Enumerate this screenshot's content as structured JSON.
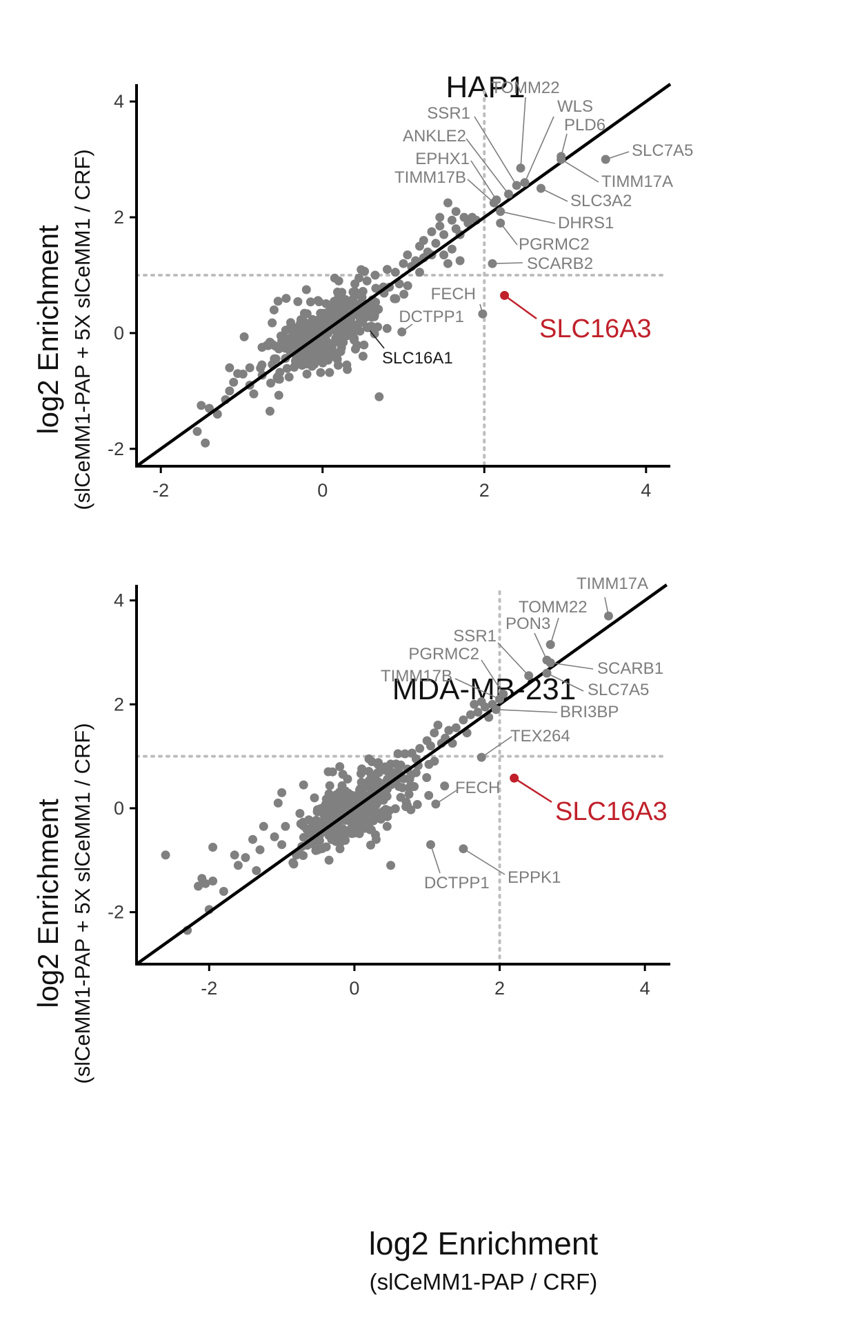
{
  "figure": {
    "x_label_main": "log2 Enrichment",
    "x_label_sub": "(slCeMM1-PAP / CRF)"
  },
  "colors": {
    "point": "#808080",
    "highlight": "#c0202a",
    "label": "#7d7d7d",
    "diagonal": "#000000",
    "threshold": "#bdbdbd"
  },
  "chart_data": [
    {
      "type": "scatter",
      "title": "HAP1",
      "xlabel": "log2 Enrichment",
      "xlabel_sub": "(slCeMM1-PAP / CRF)",
      "ylabel": "log2 Enrichment",
      "ylabel_sub": "(slCeMM1-PAP + 5X slCeMM1 / CRF)",
      "xlim": [
        -2.3,
        4.3
      ],
      "ylim": [
        -2.3,
        4.3
      ],
      "xticks": [
        "-2",
        "0",
        "2",
        "4"
      ],
      "yticks": [
        "-2",
        "0",
        "2",
        "4"
      ],
      "reference_line": "y = x",
      "thresholds": {
        "x": 2,
        "y": 1
      },
      "cloud": {
        "center": [
          0.05,
          0.05
        ],
        "n": 360,
        "sd_major": 0.45,
        "sd_minor": 0.22,
        "seed": 11
      },
      "extra_points": [
        [
          -1.45,
          -1.9
        ],
        [
          -1.55,
          -1.7
        ],
        [
          -1.5,
          -1.25
        ],
        [
          -1.4,
          -1.3
        ],
        [
          -1.3,
          -1.4
        ],
        [
          -1.2,
          -1.15
        ],
        [
          -1.15,
          -1.0
        ],
        [
          -1.1,
          -0.85
        ],
        [
          -1.15,
          -0.6
        ],
        [
          -1.05,
          -0.7
        ],
        [
          -0.9,
          -0.9
        ],
        [
          -0.85,
          -1.05
        ],
        [
          -0.9,
          -0.6
        ],
        [
          -0.65,
          -1.35
        ],
        [
          -0.75,
          -0.55
        ],
        [
          -0.55,
          0.55
        ],
        [
          -0.6,
          0.4
        ],
        [
          -0.45,
          0.6
        ],
        [
          -0.2,
          0.75
        ],
        [
          0.15,
          0.95
        ],
        [
          0.2,
          0.9
        ],
        [
          0.4,
          0.85
        ],
        [
          0.45,
          0.95
        ],
        [
          0.55,
          0.9
        ],
        [
          0.65,
          1.0
        ],
        [
          0.8,
          1.1
        ],
        [
          0.7,
          -1.1
        ],
        [
          0.5,
          -0.4
        ],
        [
          0.3,
          -0.55
        ],
        [
          0.9,
          1.05
        ],
        [
          1.0,
          1.2
        ],
        [
          1.05,
          1.35
        ],
        [
          1.1,
          1.15
        ],
        [
          1.15,
          1.25
        ],
        [
          1.2,
          1.5
        ],
        [
          1.25,
          1.6
        ],
        [
          1.3,
          1.4
        ],
        [
          1.35,
          1.75
        ],
        [
          1.4,
          1.55
        ],
        [
          1.45,
          1.85
        ],
        [
          1.5,
          1.7
        ],
        [
          1.55,
          1.2
        ],
        [
          1.6,
          1.95
        ],
        [
          1.65,
          1.8
        ],
        [
          1.7,
          1.25
        ],
        [
          1.45,
          2.0
        ],
        [
          1.55,
          2.25
        ],
        [
          1.65,
          2.1
        ],
        [
          1.75,
          2.0
        ],
        [
          1.8,
          1.9
        ],
        [
          1.85,
          2.0
        ],
        [
          1.7,
          1.7
        ],
        [
          1.6,
          1.45
        ],
        [
          1.5,
          1.35
        ],
        [
          1.35,
          1.35
        ],
        [
          1.25,
          1.3
        ],
        [
          1.2,
          1.05
        ],
        [
          0.95,
          0.85
        ],
        [
          1.9,
          1.95
        ]
      ],
      "labeled_points": [
        {
          "gene": "TOMM22",
          "x": 2.45,
          "y": 2.85
        },
        {
          "gene": "SSR1",
          "x": 2.4,
          "y": 2.55
        },
        {
          "gene": "WLS",
          "x": 2.5,
          "y": 2.6
        },
        {
          "gene": "PLD6",
          "x": 2.95,
          "y": 3.05
        },
        {
          "gene": "ANKLE2",
          "x": 2.3,
          "y": 2.4
        },
        {
          "gene": "EPHX1",
          "x": 2.15,
          "y": 2.3
        },
        {
          "gene": "TIMM17B",
          "x": 2.12,
          "y": 2.25
        },
        {
          "gene": "SLC7A5",
          "x": 3.5,
          "y": 3.0
        },
        {
          "gene": "TIMM17A",
          "x": 2.95,
          "y": 3.0
        },
        {
          "gene": "SLC3A2",
          "x": 2.7,
          "y": 2.5
        },
        {
          "gene": "DHRS1",
          "x": 2.2,
          "y": 2.1
        },
        {
          "gene": "PGRMC2",
          "x": 2.2,
          "y": 1.9
        },
        {
          "gene": "SCARB2",
          "x": 2.1,
          "y": 1.2
        },
        {
          "gene": "FECH",
          "x": 1.98,
          "y": 0.33
        },
        {
          "gene": "DCTPP1",
          "x": 0.98,
          "y": 0.02
        },
        {
          "gene": "SLC16A1",
          "x": 0.55,
          "y": 0.1
        },
        {
          "gene": "SLC16A3",
          "x": 2.25,
          "y": 0.65,
          "highlight": true
        }
      ]
    },
    {
      "type": "scatter",
      "title": "MDA-MB-231",
      "xlabel": "log2 Enrichment",
      "xlabel_sub": "(slCeMM1-PAP / CRF)",
      "ylabel": "log2 Enrichment",
      "ylabel_sub": "(slCeMM1-PAP + 5X slCeMM1 / CRF)",
      "xlim": [
        -3.0,
        4.35
      ],
      "ylim": [
        -3.0,
        4.3
      ],
      "xticks": [
        "-2",
        "0",
        "2",
        "4"
      ],
      "yticks": [
        "-2",
        "0",
        "2",
        "4"
      ],
      "reference_line": "y = x",
      "thresholds": {
        "x": 2,
        "y": 1
      },
      "cloud": {
        "center": [
          0.0,
          0.0
        ],
        "n": 380,
        "sd_major": 0.5,
        "sd_minor": 0.22,
        "seed": 29
      },
      "extra_points": [
        [
          -2.6,
          -0.9
        ],
        [
          -2.3,
          -2.35
        ],
        [
          -2.0,
          -1.95
        ],
        [
          -2.05,
          -1.45
        ],
        [
          -2.1,
          -1.35
        ],
        [
          -2.15,
          -1.5
        ],
        [
          -1.95,
          -1.4
        ],
        [
          -1.8,
          -1.6
        ],
        [
          -1.95,
          -0.75
        ],
        [
          -1.65,
          -0.9
        ],
        [
          -1.6,
          -1.1
        ],
        [
          -1.5,
          -0.95
        ],
        [
          -1.35,
          -1.2
        ],
        [
          -1.3,
          -0.8
        ],
        [
          -1.4,
          -0.6
        ],
        [
          -1.1,
          -0.55
        ],
        [
          -1.0,
          -0.7
        ],
        [
          -0.95,
          -0.35
        ],
        [
          -0.8,
          -0.9
        ],
        [
          -0.75,
          -0.1
        ],
        [
          -1.05,
          0.1
        ],
        [
          -1.0,
          0.3
        ],
        [
          -0.7,
          0.45
        ],
        [
          -0.55,
          0.2
        ],
        [
          -0.3,
          0.7
        ],
        [
          0.2,
          0.95
        ],
        [
          0.5,
          0.85
        ],
        [
          0.6,
          1.05
        ],
        [
          0.85,
          0.95
        ],
        [
          0.9,
          1.15
        ],
        [
          1.0,
          1.3
        ],
        [
          1.05,
          1.2
        ],
        [
          1.1,
          1.45
        ],
        [
          1.15,
          1.6
        ],
        [
          1.25,
          1.35
        ],
        [
          1.3,
          1.5
        ],
        [
          1.35,
          1.25
        ],
        [
          1.4,
          1.55
        ],
        [
          1.5,
          1.7
        ],
        [
          1.55,
          1.45
        ],
        [
          1.6,
          1.8
        ],
        [
          1.65,
          2.0
        ],
        [
          1.7,
          1.85
        ],
        [
          1.75,
          2.05
        ],
        [
          1.8,
          1.95
        ],
        [
          1.85,
          1.75
        ],
        [
          1.9,
          2.0
        ],
        [
          1.2,
          1.25
        ],
        [
          0.45,
          -0.35
        ],
        [
          0.3,
          -0.6
        ],
        [
          0.5,
          -1.1
        ],
        [
          -0.5,
          -0.8
        ],
        [
          -1.25,
          -0.35
        ],
        [
          -0.35,
          -1.0
        ]
      ],
      "labeled_points": [
        {
          "gene": "TIMM17A",
          "x": 3.5,
          "y": 3.7
        },
        {
          "gene": "TOMM22",
          "x": 2.7,
          "y": 3.15
        },
        {
          "gene": "PON3",
          "x": 2.65,
          "y": 2.85
        },
        {
          "gene": "SSR1",
          "x": 2.4,
          "y": 2.55
        },
        {
          "gene": "PGRMC2",
          "x": 2.05,
          "y": 2.2
        },
        {
          "gene": "TIMM17B",
          "x": 2.0,
          "y": 2.1
        },
        {
          "gene": "SCARB1",
          "x": 2.7,
          "y": 2.8
        },
        {
          "gene": "SLC7A5",
          "x": 2.65,
          "y": 2.6
        },
        {
          "gene": "BRI3BP",
          "x": 1.95,
          "y": 1.9
        },
        {
          "gene": "TEX264",
          "x": 1.75,
          "y": 0.98
        },
        {
          "gene": "FECH",
          "x": 1.12,
          "y": 0.08
        },
        {
          "gene": "DCTPP1",
          "x": 1.05,
          "y": -0.7
        },
        {
          "gene": "EPPK1",
          "x": 1.5,
          "y": -0.78
        },
        {
          "gene": "SLC16A3",
          "x": 2.2,
          "y": 0.58,
          "highlight": true
        }
      ]
    }
  ]
}
